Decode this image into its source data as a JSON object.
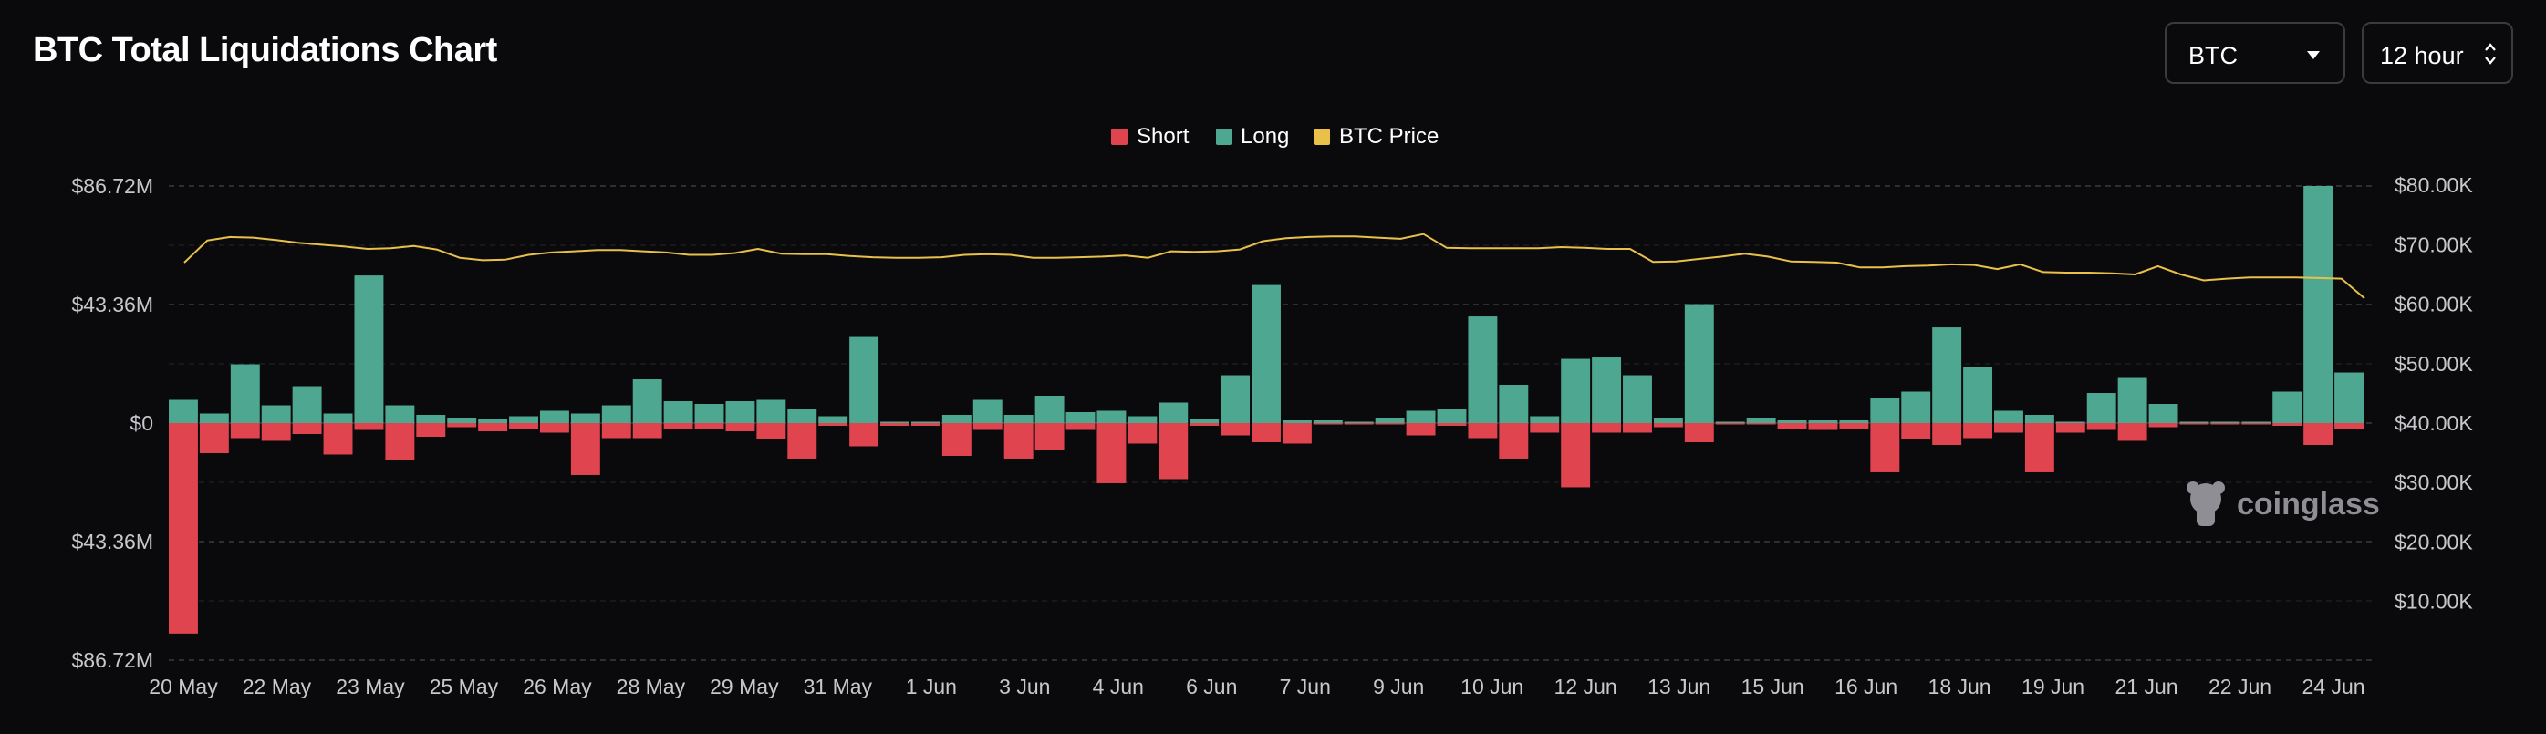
{
  "header": {
    "title": "BTC Total Liquidations Chart",
    "coin_select": {
      "value": "BTC"
    },
    "interval_select": {
      "value": "12 hour"
    }
  },
  "watermark": "coinglass",
  "colors": {
    "short": "#e0454f",
    "long": "#4ea891",
    "price": "#e8c04a",
    "grid": "#3a3a3f",
    "axis_text": "#c8c8cc"
  },
  "chart_data": {
    "type": "bar",
    "title": "BTC Total Liquidations Chart",
    "legend": {
      "position": "top-center",
      "entries": [
        "Short",
        "Long",
        "BTC Price"
      ]
    },
    "grid": true,
    "left_axis": {
      "ticks": [
        "$86.72M",
        "$43.36M",
        "$0",
        "$43.36M",
        "$86.72M"
      ],
      "range_millions": [
        -86.72,
        86.72
      ]
    },
    "right_axis": {
      "ticks": [
        "$80.00K",
        "$70.00K",
        "$60.00K",
        "$50.00K",
        "$40.00K",
        "$30.00K",
        "$20.00K",
        "$10.00K"
      ],
      "range_thousands": [
        0,
        80
      ]
    },
    "x_labels": [
      "20 May",
      "22 May",
      "23 May",
      "25 May",
      "26 May",
      "28 May",
      "29 May",
      "31 May",
      "1 Jun",
      "3 Jun",
      "4 Jun",
      "6 Jun",
      "7 Jun",
      "9 Jun",
      "10 Jun",
      "12 Jun",
      "13 Jun",
      "15 Jun",
      "16 Jun",
      "18 Jun",
      "19 Jun",
      "21 Jun",
      "22 Jun",
      "24 Jun"
    ],
    "series": [
      {
        "name": "Long",
        "unit": "USD millions",
        "values": [
          8.5,
          3.5,
          21.5,
          6.5,
          13.5,
          3.5,
          54,
          6.5,
          3,
          2,
          1.5,
          2.5,
          4.5,
          3.5,
          6.5,
          16,
          8,
          7,
          8,
          8.5,
          5,
          2.5,
          31.5,
          0.5,
          0.5,
          3,
          8.5,
          3,
          10,
          4,
          4.5,
          2.5,
          7.5,
          1.5,
          17.5,
          50.5,
          1,
          1,
          0.5,
          2,
          4.5,
          5,
          39,
          14,
          2.5,
          23.5,
          24,
          17.5,
          2,
          43.5,
          0.5,
          2,
          1,
          1,
          1,
          9,
          11.5,
          35,
          20.5,
          4.5,
          3,
          0.5,
          11,
          16.5,
          7,
          0.5,
          0.5,
          0.5,
          11.5,
          86.72,
          18.5
        ]
      },
      {
        "name": "Short",
        "unit": "USD millions",
        "values": [
          77,
          11,
          5.5,
          6.5,
          4,
          11.5,
          2.5,
          13.5,
          5,
          1.5,
          3,
          2,
          3.5,
          19,
          5.5,
          5.5,
          2,
          2,
          3,
          6,
          13,
          1,
          8.5,
          1,
          1,
          12,
          2.5,
          13,
          10,
          2.5,
          22,
          7.5,
          20.5,
          1,
          4.5,
          7,
          7.5,
          0.5,
          0.5,
          0.5,
          4.5,
          1,
          5.5,
          13,
          3.5,
          23.5,
          3.5,
          3.5,
          1.5,
          7,
          0.5,
          0.5,
          2,
          2.5,
          2,
          18,
          6,
          8,
          5.5,
          3.5,
          18,
          3.5,
          2.5,
          6.5,
          1.5,
          0.5,
          0.5,
          0.5,
          1,
          8,
          2
        ]
      },
      {
        "name": "BTC Price",
        "unit": "USD thousands",
        "values": [
          67,
          70.7,
          71.3,
          71.2,
          70.8,
          70.3,
          70,
          69.7,
          69.3,
          69.4,
          69.8,
          69.2,
          67.8,
          67.4,
          67.5,
          68.3,
          68.7,
          68.9,
          69.1,
          69.1,
          68.9,
          68.7,
          68.3,
          68.3,
          68.6,
          69.3,
          68.5,
          68.4,
          68.4,
          68.1,
          67.9,
          67.8,
          67.8,
          67.9,
          68.3,
          68.4,
          68.3,
          67.8,
          67.8,
          67.9,
          68.0,
          68.2,
          67.8,
          68.9,
          68.8,
          68.9,
          69.2,
          70.6,
          71.1,
          71.3,
          71.4,
          71.4,
          71.2,
          71.0,
          71.8,
          69.5,
          69.4,
          69.4,
          69.4,
          69.4,
          69.6,
          69.5,
          69.3,
          69.3,
          67.1,
          67.2,
          67.6,
          68.0,
          68.5,
          68.0,
          67.2,
          67.1,
          67.0,
          66.2,
          66.2,
          66.4,
          66.5,
          66.7,
          66.6,
          65.9,
          66.7,
          65.4,
          65.3,
          65.3,
          65.2,
          65.0,
          66.4,
          65.0,
          64.0,
          64.3,
          64.5,
          64.5,
          64.5,
          64.4,
          64.3,
          61.0
        ]
      }
    ]
  }
}
